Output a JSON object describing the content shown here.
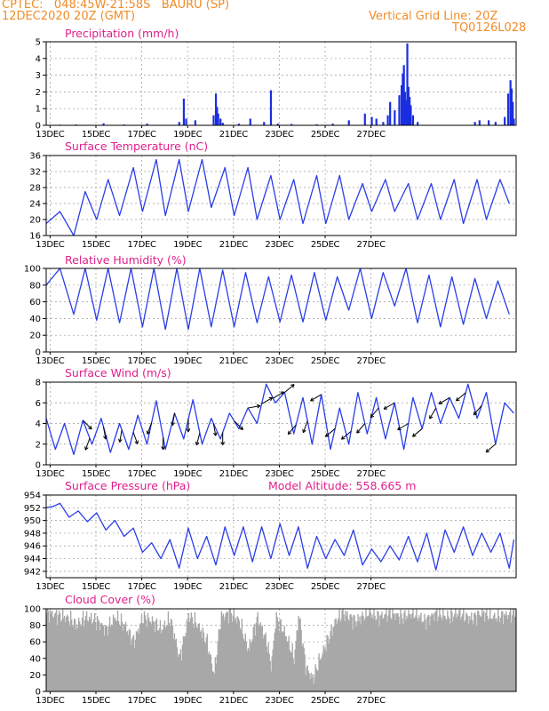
{
  "header": {
    "line1": "CPTEC:   048:45W-21:58S   BAURU (SP)",
    "line2": "12DEC2020 20Z (GMT)",
    "right1": "Vertical Grid Line: 20Z",
    "right2": "TQ0126L028"
  },
  "colors": {
    "header": "#f08c28",
    "title": "#e0208c",
    "line": "#2a3ee8",
    "bar": "#1a2ee0",
    "cloud": "#a8a8a8",
    "grid": "#9a9a9a"
  },
  "x_ticks": [
    "13DEC",
    "15DEC",
    "17DEC",
    "19DEC",
    "21DEC",
    "23DEC",
    "25DEC",
    "27DEC"
  ],
  "chart_data": [
    {
      "type": "bar",
      "title": "Precipitation (mm/h)",
      "ylim": [
        0,
        5
      ],
      "yticks": [
        0,
        1,
        2,
        3,
        4,
        5
      ],
      "x_unit": "days since 12DEC 20Z",
      "bars": [
        [
          0.6,
          0.04
        ],
        [
          1.3,
          0.05
        ],
        [
          2.5,
          0.12
        ],
        [
          3.4,
          0.05
        ],
        [
          4.4,
          0.1
        ],
        [
          5.8,
          0.2
        ],
        [
          6.0,
          1.6
        ],
        [
          6.1,
          0.4
        ],
        [
          6.5,
          0.3
        ],
        [
          7.3,
          0.6
        ],
        [
          7.4,
          1.9
        ],
        [
          7.45,
          1.1
        ],
        [
          7.5,
          0.7
        ],
        [
          7.6,
          0.4
        ],
        [
          7.7,
          0.15
        ],
        [
          8.4,
          0.1
        ],
        [
          8.9,
          0.4
        ],
        [
          9.5,
          0.2
        ],
        [
          9.8,
          2.1
        ],
        [
          10.1,
          0.1
        ],
        [
          10.7,
          0.08
        ],
        [
          11.8,
          0.06
        ],
        [
          12.5,
          0.1
        ],
        [
          13.2,
          0.3
        ],
        [
          13.9,
          0.7
        ],
        [
          14.2,
          0.5
        ],
        [
          14.4,
          0.4
        ],
        [
          14.7,
          0.2
        ],
        [
          14.9,
          0.6
        ],
        [
          15.0,
          1.4
        ],
        [
          15.2,
          0.9
        ],
        [
          15.4,
          1.8
        ],
        [
          15.5,
          2.4
        ],
        [
          15.55,
          3.1
        ],
        [
          15.6,
          3.6
        ],
        [
          15.65,
          2.0
        ],
        [
          15.7,
          1.5
        ],
        [
          15.75,
          4.9
        ],
        [
          15.8,
          2.3
        ],
        [
          15.85,
          1.7
        ],
        [
          15.9,
          1.2
        ],
        [
          16.0,
          0.6
        ],
        [
          16.2,
          0.2
        ],
        [
          18.7,
          0.2
        ],
        [
          18.9,
          0.3
        ],
        [
          19.3,
          0.3
        ],
        [
          19.6,
          0.2
        ],
        [
          20.0,
          0.5
        ],
        [
          20.15,
          1.9
        ],
        [
          20.25,
          2.7
        ],
        [
          20.3,
          2.2
        ],
        [
          20.35,
          1.4
        ],
        [
          20.4,
          0.4
        ]
      ]
    },
    {
      "type": "line",
      "title": "Surface Temperature (nC)",
      "ylim": [
        16,
        36
      ],
      "yticks": [
        16,
        20,
        24,
        28,
        32,
        36
      ],
      "x_unit": "days since 12DEC 20Z",
      "maxima": [
        [
          0,
          19
        ],
        [
          0.6,
          22
        ],
        [
          1.7,
          27
        ],
        [
          2.7,
          30
        ],
        [
          3.8,
          33
        ],
        [
          4.8,
          35
        ],
        [
          5.8,
          35
        ],
        [
          6.8,
          35
        ],
        [
          7.8,
          33
        ],
        [
          8.8,
          33
        ],
        [
          9.8,
          31
        ],
        [
          10.8,
          30
        ],
        [
          11.8,
          31
        ],
        [
          12.8,
          31
        ],
        [
          13.8,
          29
        ],
        [
          14.8,
          30
        ],
        [
          15.8,
          29
        ],
        [
          16.8,
          29
        ],
        [
          17.8,
          30
        ],
        [
          18.8,
          30
        ],
        [
          19.8,
          30
        ]
      ],
      "minima": [
        [
          1.2,
          16
        ],
        [
          2.2,
          20
        ],
        [
          3.2,
          21
        ],
        [
          4.2,
          22
        ],
        [
          5.2,
          21
        ],
        [
          6.2,
          22
        ],
        [
          7.2,
          23
        ],
        [
          8.2,
          21
        ],
        [
          9.2,
          20
        ],
        [
          10.2,
          20
        ],
        [
          11.2,
          19
        ],
        [
          12.2,
          19
        ],
        [
          13.2,
          20
        ],
        [
          14.2,
          22
        ],
        [
          15.2,
          22
        ],
        [
          16.2,
          20
        ],
        [
          17.2,
          20
        ],
        [
          18.2,
          19
        ],
        [
          19.2,
          20
        ],
        [
          20.2,
          24
        ]
      ]
    },
    {
      "type": "line",
      "title": "Relative Humidity (%)",
      "ylim": [
        0,
        100
      ],
      "yticks": [
        0,
        20,
        40,
        60,
        80,
        100
      ],
      "x_unit": "days since 12DEC 20Z",
      "maxima": [
        [
          0,
          80
        ],
        [
          0.6,
          100
        ],
        [
          1.7,
          100
        ],
        [
          2.7,
          100
        ],
        [
          3.7,
          100
        ],
        [
          4.7,
          100
        ],
        [
          5.7,
          100
        ],
        [
          6.7,
          100
        ],
        [
          7.7,
          98
        ],
        [
          8.7,
          95
        ],
        [
          9.7,
          90
        ],
        [
          10.7,
          92
        ],
        [
          11.7,
          95
        ],
        [
          12.7,
          90
        ],
        [
          13.7,
          100
        ],
        [
          14.7,
          95
        ],
        [
          15.7,
          100
        ],
        [
          16.7,
          92
        ],
        [
          17.7,
          90
        ],
        [
          18.7,
          88
        ],
        [
          19.7,
          85
        ]
      ],
      "minima": [
        [
          1.2,
          45
        ],
        [
          2.2,
          38
        ],
        [
          3.2,
          35
        ],
        [
          4.2,
          30
        ],
        [
          5.2,
          27
        ],
        [
          6.2,
          27
        ],
        [
          7.2,
          30
        ],
        [
          8.2,
          30
        ],
        [
          9.2,
          35
        ],
        [
          10.2,
          36
        ],
        [
          11.2,
          36
        ],
        [
          12.2,
          38
        ],
        [
          13.2,
          50
        ],
        [
          14.2,
          40
        ],
        [
          15.2,
          55
        ],
        [
          16.2,
          35
        ],
        [
          17.2,
          30
        ],
        [
          18.2,
          33
        ],
        [
          19.2,
          40
        ],
        [
          20.2,
          45
        ]
      ]
    },
    {
      "type": "line",
      "title": "Surface Wind (m/s)",
      "ylim": [
        0,
        8
      ],
      "yticks": [
        0,
        2,
        4,
        6,
        8
      ],
      "x_unit": "days since 12DEC 20Z",
      "values": [
        [
          0,
          4.5
        ],
        [
          0.4,
          1.5
        ],
        [
          0.8,
          4.0
        ],
        [
          1.2,
          1.0
        ],
        [
          1.6,
          4.3
        ],
        [
          2.0,
          2.0
        ],
        [
          2.4,
          4.5
        ],
        [
          2.8,
          1.2
        ],
        [
          3.2,
          4.0
        ],
        [
          3.6,
          1.5
        ],
        [
          4.0,
          4.8
        ],
        [
          4.4,
          2.0
        ],
        [
          4.8,
          6.2
        ],
        [
          5.2,
          1.5
        ],
        [
          5.6,
          5.0
        ],
        [
          6.0,
          2.5
        ],
        [
          6.4,
          6.3
        ],
        [
          6.8,
          2.0
        ],
        [
          7.2,
          4.5
        ],
        [
          7.6,
          2.5
        ],
        [
          8.0,
          5.0
        ],
        [
          8.4,
          3.5
        ],
        [
          8.8,
          5.5
        ],
        [
          9.2,
          4.0
        ],
        [
          9.6,
          7.8
        ],
        [
          10.0,
          6.0
        ],
        [
          10.4,
          7.0
        ],
        [
          10.8,
          3.0
        ],
        [
          11.2,
          6.5
        ],
        [
          11.6,
          2.0
        ],
        [
          12.0,
          6.8
        ],
        [
          12.4,
          1.5
        ],
        [
          12.8,
          5.5
        ],
        [
          13.2,
          2.0
        ],
        [
          13.6,
          7.0
        ],
        [
          14.0,
          3.0
        ],
        [
          14.4,
          6.5
        ],
        [
          14.8,
          2.5
        ],
        [
          15.2,
          6.0
        ],
        [
          15.6,
          1.5
        ],
        [
          16.0,
          6.5
        ],
        [
          16.4,
          3.5
        ],
        [
          16.8,
          7.0
        ],
        [
          17.2,
          4.0
        ],
        [
          17.6,
          6.5
        ],
        [
          18.0,
          4.5
        ],
        [
          18.4,
          7.8
        ],
        [
          18.8,
          4.5
        ],
        [
          19.2,
          7.0
        ],
        [
          19.6,
          2.0
        ],
        [
          20.0,
          6.0
        ],
        [
          20.4,
          5.0
        ]
      ],
      "arrows": [
        [
          1.6,
          135
        ],
        [
          1.9,
          200
        ],
        [
          2.5,
          170
        ],
        [
          3.3,
          190
        ],
        [
          3.8,
          160
        ],
        [
          4.6,
          200
        ],
        [
          5.1,
          180
        ],
        [
          5.6,
          190
        ],
        [
          6.2,
          180
        ],
        [
          6.7,
          195
        ],
        [
          7.3,
          170
        ],
        [
          7.7,
          180
        ],
        [
          8.2,
          135
        ],
        [
          8.8,
          80
        ],
        [
          9.4,
          60
        ],
        [
          9.9,
          60
        ],
        [
          10.4,
          50
        ],
        [
          10.9,
          220
        ],
        [
          11.4,
          200
        ],
        [
          12.0,
          240
        ],
        [
          12.6,
          230
        ],
        [
          13.3,
          230
        ],
        [
          13.9,
          220
        ],
        [
          14.5,
          220
        ],
        [
          15.2,
          240
        ],
        [
          15.8,
          240
        ],
        [
          16.4,
          230
        ],
        [
          17.0,
          210
        ],
        [
          17.6,
          240
        ],
        [
          18.3,
          230
        ],
        [
          19.0,
          220
        ],
        [
          19.6,
          230
        ]
      ]
    },
    {
      "type": "line",
      "title": "Surface Pressure (hPa)",
      "annotation": "Model Altitude: 558.665 m",
      "ylim": [
        941,
        954
      ],
      "yticks": [
        942,
        944,
        946,
        948,
        950,
        952,
        954
      ],
      "x_unit": "days since 12DEC 20Z",
      "values": [
        [
          0,
          952
        ],
        [
          0.3,
          952.2
        ],
        [
          0.6,
          952.7
        ],
        [
          1.0,
          950.5
        ],
        [
          1.4,
          951.5
        ],
        [
          1.8,
          949.8
        ],
        [
          2.2,
          951.2
        ],
        [
          2.6,
          948.5
        ],
        [
          3.0,
          950.0
        ],
        [
          3.4,
          947.5
        ],
        [
          3.8,
          948.8
        ],
        [
          4.2,
          945.0
        ],
        [
          4.6,
          946.5
        ],
        [
          5.0,
          944.0
        ],
        [
          5.4,
          947.0
        ],
        [
          5.8,
          942.5
        ],
        [
          6.2,
          948.8
        ],
        [
          6.6,
          944.0
        ],
        [
          7.0,
          947.5
        ],
        [
          7.4,
          943.0
        ],
        [
          7.8,
          949.0
        ],
        [
          8.2,
          944.5
        ],
        [
          8.6,
          949.0
        ],
        [
          9.0,
          943.5
        ],
        [
          9.4,
          949.0
        ],
        [
          9.8,
          944.0
        ],
        [
          10.2,
          949.5
        ],
        [
          10.6,
          944.5
        ],
        [
          11.0,
          949.0
        ],
        [
          11.4,
          942.5
        ],
        [
          11.8,
          947.5
        ],
        [
          12.2,
          944.0
        ],
        [
          12.6,
          947.0
        ],
        [
          13.0,
          944.5
        ],
        [
          13.4,
          948.5
        ],
        [
          13.8,
          943.0
        ],
        [
          14.2,
          945.5
        ],
        [
          14.6,
          943.5
        ],
        [
          15.0,
          946.0
        ],
        [
          15.4,
          943.8
        ],
        [
          15.8,
          947.5
        ],
        [
          16.2,
          943.5
        ],
        [
          16.6,
          948.0
        ],
        [
          17.0,
          942.2
        ],
        [
          17.4,
          948.5
        ],
        [
          17.8,
          945.0
        ],
        [
          18.2,
          949.0
        ],
        [
          18.6,
          944.5
        ],
        [
          19.0,
          948.0
        ],
        [
          19.4,
          945.0
        ],
        [
          19.8,
          948.0
        ],
        [
          20.2,
          942.5
        ],
        [
          20.4,
          947.0
        ]
      ]
    },
    {
      "type": "bar",
      "title": "Cloud Cover (%)",
      "ylim": [
        0,
        100
      ],
      "yticks": [
        0,
        20,
        40,
        60,
        80,
        100
      ],
      "x_unit": "days since 12DEC 20Z",
      "profile": [
        [
          0,
          95
        ],
        [
          0.5,
          92
        ],
        [
          1.0,
          88
        ],
        [
          1.3,
          80
        ],
        [
          1.7,
          90
        ],
        [
          2.2,
          85
        ],
        [
          2.6,
          75
        ],
        [
          3.0,
          90
        ],
        [
          3.4,
          80
        ],
        [
          3.8,
          60
        ],
        [
          4.2,
          90
        ],
        [
          4.6,
          85
        ],
        [
          5.0,
          75
        ],
        [
          5.4,
          88
        ],
        [
          5.8,
          40
        ],
        [
          6.2,
          92
        ],
        [
          6.6,
          80
        ],
        [
          7.0,
          60
        ],
        [
          7.3,
          20
        ],
        [
          7.6,
          90
        ],
        [
          8.0,
          95
        ],
        [
          8.4,
          85
        ],
        [
          8.8,
          50
        ],
        [
          9.2,
          90
        ],
        [
          9.6,
          60
        ],
        [
          9.8,
          30
        ],
        [
          10.0,
          90
        ],
        [
          10.4,
          70
        ],
        [
          10.8,
          40
        ],
        [
          11.0,
          95
        ],
        [
          11.3,
          30
        ],
        [
          11.6,
          15
        ],
        [
          12.0,
          45
        ],
        [
          12.3,
          65
        ],
        [
          12.6,
          85
        ],
        [
          12.9,
          95
        ],
        [
          13.2,
          90
        ],
        [
          13.5,
          85
        ],
        [
          14.0,
          95
        ],
        [
          14.5,
          90
        ],
        [
          15.0,
          95
        ],
        [
          15.5,
          90
        ],
        [
          16.0,
          95
        ],
        [
          16.5,
          85
        ],
        [
          17.0,
          95
        ],
        [
          17.5,
          90
        ],
        [
          18.0,
          95
        ],
        [
          18.5,
          88
        ],
        [
          19.0,
          95
        ],
        [
          19.5,
          90
        ],
        [
          20.0,
          92
        ],
        [
          20.4,
          95
        ]
      ]
    }
  ]
}
